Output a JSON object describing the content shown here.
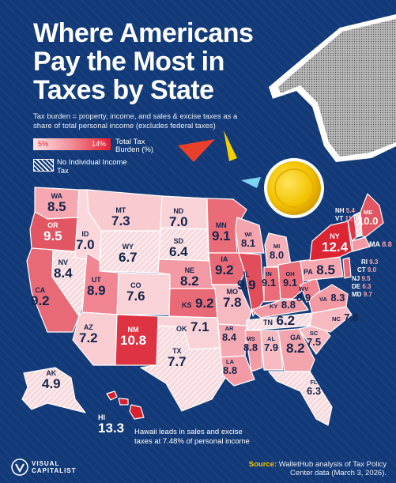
{
  "title_lines": [
    "Where Americans",
    "Pay the Most in",
    "Taxes by State"
  ],
  "subtitle": "Tax burden = property, income, and sales & excise taxes as a share of total personal income (excludes federal taxes)",
  "legend": {
    "min_label": "5%",
    "max_label": "14%",
    "scale_label": "Total Tax Burden (%)",
    "hatch_label": "No Individual Income Tax",
    "min_color": "#fbe3e6",
    "max_color": "#e4202f"
  },
  "states": [
    {
      "abbr": "WA",
      "value": "8.5"
    },
    {
      "abbr": "OR",
      "value": "9.5"
    },
    {
      "abbr": "ID",
      "value": "7.0"
    },
    {
      "abbr": "MT",
      "value": "7.3"
    },
    {
      "abbr": "WY",
      "value": "6.7"
    },
    {
      "abbr": "ND",
      "value": "7.0"
    },
    {
      "abbr": "SD",
      "value": "6.4"
    },
    {
      "abbr": "MN",
      "value": "9.1"
    },
    {
      "abbr": "WI",
      "value": "8.1"
    },
    {
      "abbr": "MI",
      "value": "8.0"
    },
    {
      "abbr": "NV",
      "value": "8.4"
    },
    {
      "abbr": "CA",
      "value": "9.2"
    },
    {
      "abbr": "UT",
      "value": "8.9"
    },
    {
      "abbr": "CO",
      "value": "7.6"
    },
    {
      "abbr": "NE",
      "value": "8.2"
    },
    {
      "abbr": "IA",
      "value": "9.2"
    },
    {
      "abbr": "IL",
      "value": "9.9"
    },
    {
      "abbr": "IN",
      "value": "9.1"
    },
    {
      "abbr": "OH",
      "value": "9.1"
    },
    {
      "abbr": "PA",
      "value": "8.5"
    },
    {
      "abbr": "NY",
      "value": "12.4"
    },
    {
      "abbr": "ME",
      "value": "10.0"
    },
    {
      "abbr": "AZ",
      "value": "7.2"
    },
    {
      "abbr": "NM",
      "value": "10.8"
    },
    {
      "abbr": "KS",
      "value": "9.2"
    },
    {
      "abbr": "MO",
      "value": "7.8"
    },
    {
      "abbr": "KY",
      "value": "8.8"
    },
    {
      "abbr": "WV",
      "value": "8.9"
    },
    {
      "abbr": "VA",
      "value": "8.3"
    },
    {
      "abbr": "OK",
      "value": "7.1"
    },
    {
      "abbr": "AR",
      "value": "8.4"
    },
    {
      "abbr": "TN",
      "value": "6.2"
    },
    {
      "abbr": "NC",
      "value": "7.8"
    },
    {
      "abbr": "SC",
      "value": "7.5"
    },
    {
      "abbr": "TX",
      "value": "7.7"
    },
    {
      "abbr": "LA",
      "value": "8.8"
    },
    {
      "abbr": "MS",
      "value": "8.8"
    },
    {
      "abbr": "AL",
      "value": "7.9"
    },
    {
      "abbr": "GA",
      "value": "8.2"
    },
    {
      "abbr": "FL",
      "value": "6.3"
    },
    {
      "abbr": "AK",
      "value": "4.9"
    },
    {
      "abbr": "HI",
      "value": "13.3"
    }
  ],
  "northeast": [
    {
      "abbr": "NH",
      "value": "5.4"
    },
    {
      "abbr": "VT",
      "value": "11.1"
    },
    {
      "abbr": "MA",
      "value": "8.8"
    },
    {
      "abbr": "RI",
      "value": "9.3"
    },
    {
      "abbr": "CT",
      "value": "9.0"
    },
    {
      "abbr": "NJ",
      "value": "9.5"
    },
    {
      "abbr": "DE",
      "value": "6.3"
    },
    {
      "abbr": "MD",
      "value": "9.7"
    }
  ],
  "hawaii_note": "Hawaii leads in sales and excise taxes at 7.48% of personal income",
  "brand": [
    "VISUAL",
    "CAPITALIST"
  ],
  "source_label": "Source:",
  "source_text": "WalletHub analysis of Tax Policy Center data (March 3, 2026)."
}
